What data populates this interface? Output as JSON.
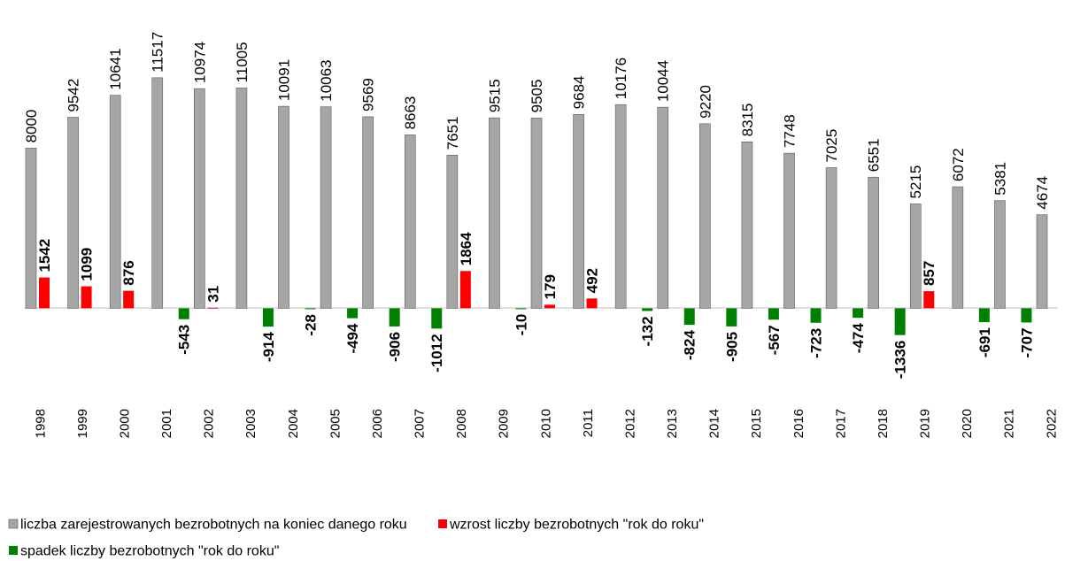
{
  "chart_data": {
    "type": "bar",
    "categories": [
      "1998",
      "1999",
      "2000",
      "2001",
      "2002",
      "2003",
      "2004",
      "2005",
      "2006",
      "2007",
      "2008",
      "2009",
      "2010",
      "2011",
      "2012",
      "2013",
      "2014",
      "2015",
      "2016",
      "2017",
      "2018",
      "2019",
      "2020",
      "2021",
      "2022"
    ],
    "series": [
      {
        "name": "liczba zarejestrowanych bezrobotnych na koniec danego roku",
        "color": "#a6a6a6",
        "values": [
          8000,
          9542,
          10641,
          11517,
          10974,
          11005,
          10091,
          10063,
          9569,
          8663,
          7651,
          9515,
          9505,
          9684,
          10176,
          10044,
          9220,
          8315,
          7748,
          7025,
          6551,
          5215,
          6072,
          5381,
          4674
        ]
      },
      {
        "name": "wzrost liczby bezrobotnych \"rok do roku\"",
        "color": "#ff0000",
        "values": [
          1542,
          1099,
          876,
          null,
          31,
          null,
          null,
          null,
          null,
          null,
          1864,
          null,
          179,
          492,
          null,
          null,
          null,
          null,
          null,
          null,
          null,
          857,
          null,
          null,
          null
        ]
      },
      {
        "name": "spadek liczby bezrobotnych \"rok do roku\"",
        "color": "#008000",
        "values": [
          null,
          null,
          null,
          -543,
          null,
          -914,
          -28,
          -494,
          -906,
          -1012,
          null,
          -10,
          null,
          null,
          -132,
          -824,
          -905,
          -567,
          -723,
          -474,
          -1336,
          null,
          -691,
          -707,
          null
        ]
      }
    ],
    "ylim": [
      -4400,
      15400
    ]
  }
}
